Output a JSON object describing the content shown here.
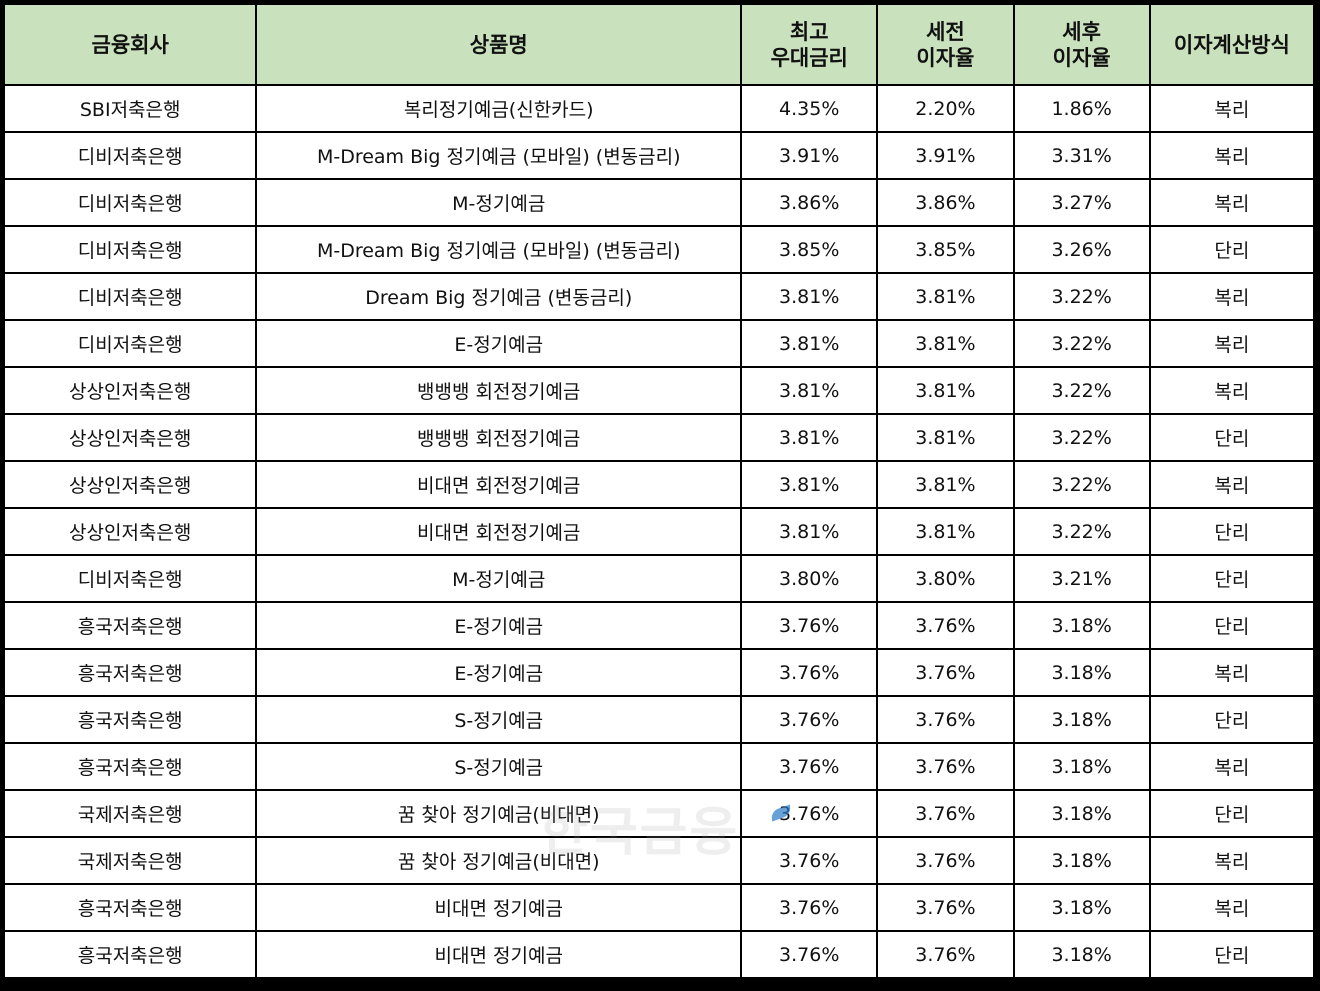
{
  "headers": {
    "company": "금융회사",
    "product": "상품명",
    "max_rate_1": "최고",
    "max_rate_2": "우대금리",
    "pre_tax_1": "세전",
    "pre_tax_2": "이자율",
    "post_tax_1": "세후",
    "post_tax_2": "이자율",
    "method": "이자계산방식"
  },
  "rows": [
    {
      "company": "SBI저축은행",
      "product": "복리정기예금(신한카드)",
      "max_rate": "4.35%",
      "pre_tax": "2.20%",
      "post_tax": "1.86%",
      "method": "복리"
    },
    {
      "company": "디비저축은행",
      "product": "M-Dream Big 정기예금 (모바일) (변동금리)",
      "max_rate": "3.91%",
      "pre_tax": "3.91%",
      "post_tax": "3.31%",
      "method": "복리"
    },
    {
      "company": "디비저축은행",
      "product": "M-정기예금",
      "max_rate": "3.86%",
      "pre_tax": "3.86%",
      "post_tax": "3.27%",
      "method": "복리"
    },
    {
      "company": "디비저축은행",
      "product": "M-Dream Big 정기예금 (모바일) (변동금리)",
      "max_rate": "3.85%",
      "pre_tax": "3.85%",
      "post_tax": "3.26%",
      "method": "단리"
    },
    {
      "company": "디비저축은행",
      "product": "Dream Big 정기예금 (변동금리)",
      "max_rate": "3.81%",
      "pre_tax": "3.81%",
      "post_tax": "3.22%",
      "method": "복리"
    },
    {
      "company": "디비저축은행",
      "product": "E-정기예금",
      "max_rate": "3.81%",
      "pre_tax": "3.81%",
      "post_tax": "3.22%",
      "method": "복리"
    },
    {
      "company": "상상인저축은행",
      "product": "뱅뱅뱅 회전정기예금",
      "max_rate": "3.81%",
      "pre_tax": "3.81%",
      "post_tax": "3.22%",
      "method": "복리"
    },
    {
      "company": "상상인저축은행",
      "product": "뱅뱅뱅 회전정기예금",
      "max_rate": "3.81%",
      "pre_tax": "3.81%",
      "post_tax": "3.22%",
      "method": "단리"
    },
    {
      "company": "상상인저축은행",
      "product": "비대면 회전정기예금",
      "max_rate": "3.81%",
      "pre_tax": "3.81%",
      "post_tax": "3.22%",
      "method": "복리"
    },
    {
      "company": "상상인저축은행",
      "product": "비대면 회전정기예금",
      "max_rate": "3.81%",
      "pre_tax": "3.81%",
      "post_tax": "3.22%",
      "method": "단리"
    },
    {
      "company": "디비저축은행",
      "product": "M-정기예금",
      "max_rate": "3.80%",
      "pre_tax": "3.80%",
      "post_tax": "3.21%",
      "method": "단리"
    },
    {
      "company": "흥국저축은행",
      "product": "E-정기예금",
      "max_rate": "3.76%",
      "pre_tax": "3.76%",
      "post_tax": "3.18%",
      "method": "단리"
    },
    {
      "company": "흥국저축은행",
      "product": "E-정기예금",
      "max_rate": "3.76%",
      "pre_tax": "3.76%",
      "post_tax": "3.18%",
      "method": "복리"
    },
    {
      "company": "흥국저축은행",
      "product": "S-정기예금",
      "max_rate": "3.76%",
      "pre_tax": "3.76%",
      "post_tax": "3.18%",
      "method": "단리"
    },
    {
      "company": "흥국저축은행",
      "product": "S-정기예금",
      "max_rate": "3.76%",
      "pre_tax": "3.76%",
      "post_tax": "3.18%",
      "method": "복리"
    },
    {
      "company": "국제저축은행",
      "product": "꿈 찾아 정기예금(비대면)",
      "max_rate": "3.76%",
      "pre_tax": "3.76%",
      "post_tax": "3.18%",
      "method": "단리"
    },
    {
      "company": "국제저축은행",
      "product": "꿈 찾아 정기예금(비대면)",
      "max_rate": "3.76%",
      "pre_tax": "3.76%",
      "post_tax": "3.18%",
      "method": "복리"
    },
    {
      "company": "흥국저축은행",
      "product": "비대면 정기예금",
      "max_rate": "3.76%",
      "pre_tax": "3.76%",
      "post_tax": "3.18%",
      "method": "복리"
    },
    {
      "company": "흥국저축은행",
      "product": "비대면 정기예금",
      "max_rate": "3.76%",
      "pre_tax": "3.76%",
      "post_tax": "3.18%",
      "method": "단리"
    }
  ],
  "watermark": "한국금융"
}
